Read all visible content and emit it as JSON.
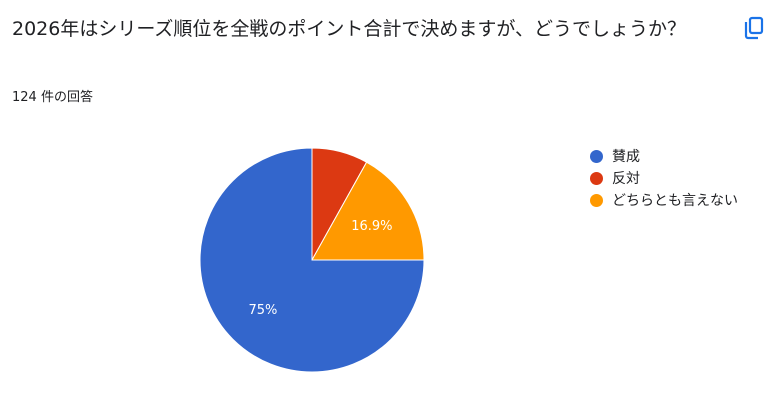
{
  "question": {
    "title": "2026年はシリーズ順位を全戦のポイント合計で決めますが、どうでしょうか？",
    "response_count": "124 件の回答"
  },
  "icons": {
    "copy": "copy-icon"
  },
  "chart_data": {
    "type": "pie",
    "start_angle_deg": 0,
    "direction": "clockwise",
    "legend_position": "right",
    "slices": [
      {
        "label": "反対",
        "value": 8.1,
        "color": "#dc3912",
        "data_label": ""
      },
      {
        "label": "どちらとも言えない",
        "value": 16.9,
        "color": "#ff9900",
        "data_label": "16.9%"
      },
      {
        "label": "賛成",
        "value": 75,
        "color": "#3366cc",
        "data_label": "75%"
      }
    ],
    "legend": [
      {
        "label": "賛成",
        "color": "#3366cc"
      },
      {
        "label": "反対",
        "color": "#dc3912"
      },
      {
        "label": "どちらとも言えない",
        "color": "#ff9900"
      }
    ]
  }
}
